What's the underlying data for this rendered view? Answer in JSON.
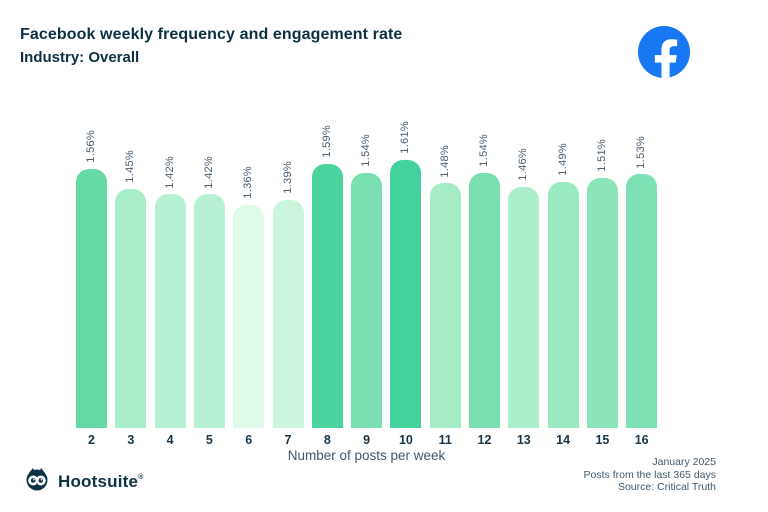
{
  "header": {
    "title": "Facebook weekly frequency and engagement rate",
    "subtitle": "Industry: Overall"
  },
  "chart_data": {
    "type": "bar",
    "title": "Facebook weekly frequency and engagement rate",
    "subtitle": "Industry: Overall",
    "xlabel": "Number of posts per week",
    "ylabel": "",
    "categories": [
      "2",
      "3",
      "4",
      "5",
      "6",
      "7",
      "8",
      "9",
      "10",
      "11",
      "12",
      "13",
      "14",
      "15",
      "16"
    ],
    "values": [
      1.56,
      1.45,
      1.42,
      1.42,
      1.36,
      1.39,
      1.59,
      1.54,
      1.61,
      1.48,
      1.54,
      1.46,
      1.49,
      1.51,
      1.53
    ],
    "value_labels": [
      "1.56%",
      "1.45%",
      "1.42%",
      "1.42%",
      "1.36%",
      "1.39%",
      "1.59%",
      "1.54%",
      "1.61%",
      "1.48%",
      "1.54%",
      "1.46%",
      "1.49%",
      "1.51%",
      "1.53%"
    ],
    "bar_colors": [
      "#66daa6",
      "#a9edca",
      "#b8f0d3",
      "#b8f0d3",
      "#defae9",
      "#ccf5de",
      "#4bd3a0",
      "#7adfb1",
      "#43d19c",
      "#a4ebc6",
      "#7adfb1",
      "#abeecb",
      "#9ae9c1",
      "#8ce4ba",
      "#7ee1b4"
    ],
    "value_range_shown": [
      1.36,
      1.61
    ],
    "grid": false,
    "legend": false
  },
  "footer": {
    "brand_name": "Hootsuite",
    "trademark": "®",
    "owl_icon": "hootsuite-owl",
    "notes": [
      "January 2025",
      "Posts from the last 365 days",
      "Source: Critical Truth"
    ]
  },
  "colors": {
    "title_text": "#0d3143",
    "value_label_text": "#4a5f70",
    "tick_label_text": "#17364a",
    "axis_label_text": "#3f5a6c",
    "footer_text": "#3f5a6c",
    "facebook_blue": "#1877F2",
    "brand_navy": "#0d3143"
  }
}
